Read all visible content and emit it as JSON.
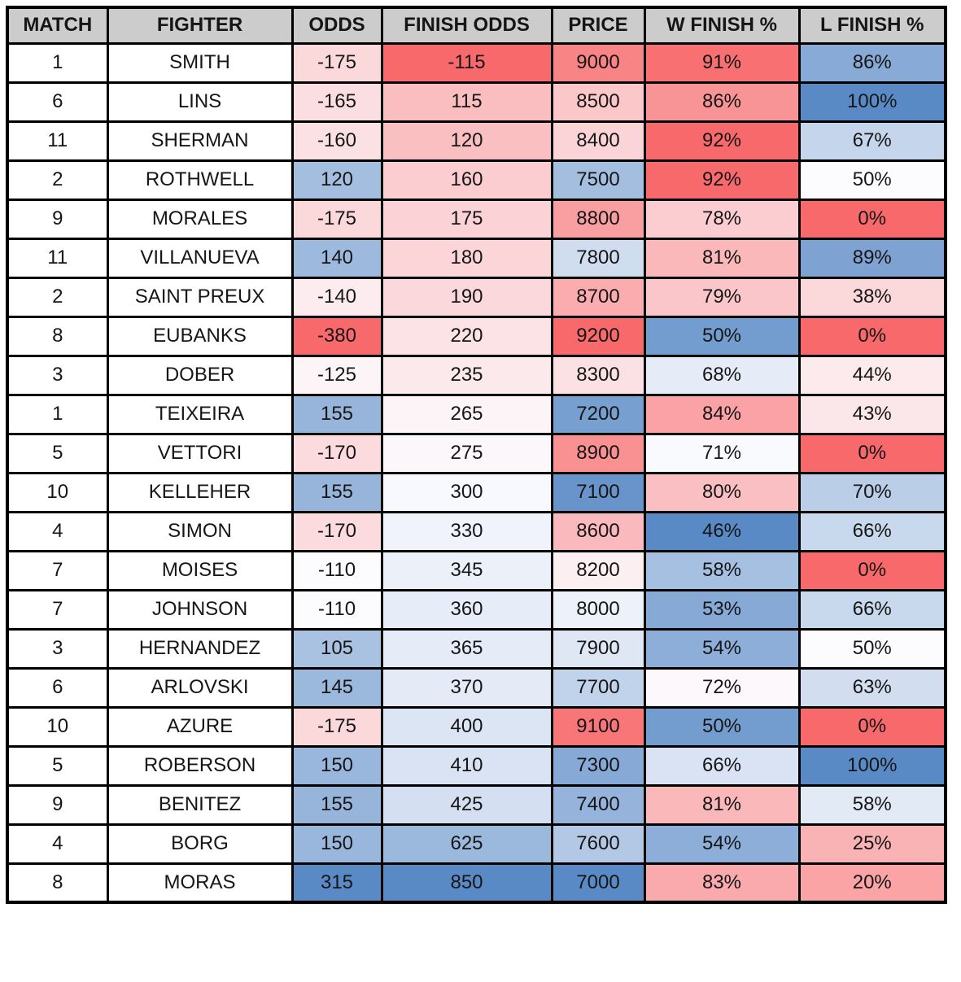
{
  "styles": {
    "page_bg": "#FFFFFF",
    "header_bg": "#CCCCCC",
    "border_color": "#000000",
    "text_color": "#161616"
  },
  "chart_data": {
    "type": "table",
    "title": "",
    "columns": [
      "MATCH",
      "FIGHTER",
      "ODDS",
      "FINISH ODDS",
      "PRICE",
      "W FINISH %",
      "L FINISH %"
    ],
    "rows": [
      [
        "1",
        "SMITH",
        "-175",
        "-115",
        "9000",
        "91%",
        "86%"
      ],
      [
        "6",
        "LINS",
        "-165",
        "115",
        "8500",
        "86%",
        "100%"
      ],
      [
        "11",
        "SHERMAN",
        "-160",
        "120",
        "8400",
        "92%",
        "67%"
      ],
      [
        "2",
        "ROTHWELL",
        "120",
        "160",
        "7500",
        "92%",
        "50%"
      ],
      [
        "9",
        "MORALES",
        "-175",
        "175",
        "8800",
        "78%",
        "0%"
      ],
      [
        "11",
        "VILLANUEVA",
        "140",
        "180",
        "7800",
        "81%",
        "89%"
      ],
      [
        "2",
        "SAINT PREUX",
        "-140",
        "190",
        "8700",
        "79%",
        "38%"
      ],
      [
        "8",
        "EUBANKS",
        "-380",
        "220",
        "9200",
        "50%",
        "0%"
      ],
      [
        "3",
        "DOBER",
        "-125",
        "235",
        "8300",
        "68%",
        "44%"
      ],
      [
        "1",
        "TEIXEIRA",
        "155",
        "265",
        "7200",
        "84%",
        "43%"
      ],
      [
        "5",
        "VETTORI",
        "-170",
        "275",
        "8900",
        "71%",
        "0%"
      ],
      [
        "10",
        "KELLEHER",
        "155",
        "300",
        "7100",
        "80%",
        "70%"
      ],
      [
        "4",
        "SIMON",
        "-170",
        "330",
        "8600",
        "46%",
        "66%"
      ],
      [
        "7",
        "MOISES",
        "-110",
        "345",
        "8200",
        "58%",
        "0%"
      ],
      [
        "7",
        "JOHNSON",
        "-110",
        "360",
        "8000",
        "53%",
        "66%"
      ],
      [
        "3",
        "HERNANDEZ",
        "105",
        "365",
        "7900",
        "54%",
        "50%"
      ],
      [
        "6",
        "ARLOVSKI",
        "145",
        "370",
        "7700",
        "72%",
        "63%"
      ],
      [
        "10",
        "AZURE",
        "-175",
        "400",
        "9100",
        "50%",
        "0%"
      ],
      [
        "5",
        "ROBERSON",
        "150",
        "410",
        "7300",
        "66%",
        "100%"
      ],
      [
        "9",
        "BENITEZ",
        "155",
        "425",
        "7400",
        "81%",
        "58%"
      ],
      [
        "4",
        "BORG",
        "150",
        "625",
        "7600",
        "54%",
        "25%"
      ],
      [
        "8",
        "MORAS",
        "315",
        "850",
        "7000",
        "83%",
        "20%"
      ]
    ],
    "conditional_formatting": {
      "description": "Excel-style 3-color scale per column: endpoint colors at column min/max, white at the column median",
      "palette": {
        "red": "#F8696B",
        "white": "#FCFCFF",
        "blue": "#5A8AC6"
      },
      "column_scales": {
        "2": {
          "min": -380,
          "mid": -110,
          "max": 315,
          "min_color": "#F8696B",
          "mid_color": "#FCFCFF",
          "max_color": "#5A8AC6"
        },
        "3": {
          "min": -115,
          "mid": 287.5,
          "max": 850,
          "min_color": "#F8696B",
          "mid_color": "#FCFCFF",
          "max_color": "#5A8AC6"
        },
        "4": {
          "min": 7000,
          "mid": 8100,
          "max": 9200,
          "min_color": "#5A8AC6",
          "mid_color": "#FCFCFF",
          "max_color": "#F8696B"
        },
        "5": {
          "min": 46,
          "mid": 71.5,
          "max": 92,
          "min_color": "#5A8AC6",
          "mid_color": "#FCFCFF",
          "max_color": "#F8696B"
        },
        "6": {
          "min": 0,
          "mid": 50,
          "max": 100,
          "min_color": "#F8696B",
          "mid_color": "#FCFCFF",
          "max_color": "#5A8AC6"
        }
      }
    }
  }
}
